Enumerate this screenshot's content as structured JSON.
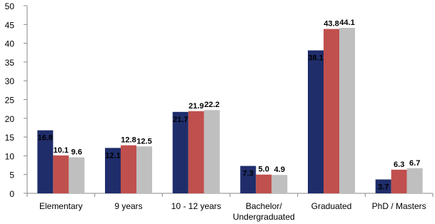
{
  "chart_data": {
    "type": "bar",
    "categories": [
      "Elementary",
      "9 years",
      "10 - 12 years",
      "Bachelor/\nUndergraduated",
      "Graduated",
      "PhD / Masters"
    ],
    "series": [
      {
        "color": "#1f2d6b",
        "values": [
          16.8,
          12.1,
          21.7,
          7.3,
          38.1,
          3.7
        ],
        "value_labels": [
          "16.8",
          "12.1",
          "21.7",
          "7.3",
          "38.1",
          "3.7"
        ]
      },
      {
        "color": "#c0504d",
        "values": [
          10.1,
          12.8,
          21.9,
          5,
          43.8,
          6.3
        ],
        "value_labels": [
          "10.1",
          "12.8",
          "21.9",
          "5.0",
          "43.8",
          "6.3"
        ]
      },
      {
        "color": "#bfbfbf",
        "values": [
          9.6,
          12.5,
          22.2,
          4.9,
          44.1,
          6.7
        ],
        "value_labels": [
          "9.6",
          "12.5",
          "22.2",
          "4.9",
          "44.1",
          "6.7"
        ]
      }
    ],
    "ylim": [
      0,
      50
    ],
    "yticks": [
      0,
      5,
      10,
      15,
      20,
      25,
      30,
      35,
      40,
      45,
      50
    ],
    "grid": false
  }
}
